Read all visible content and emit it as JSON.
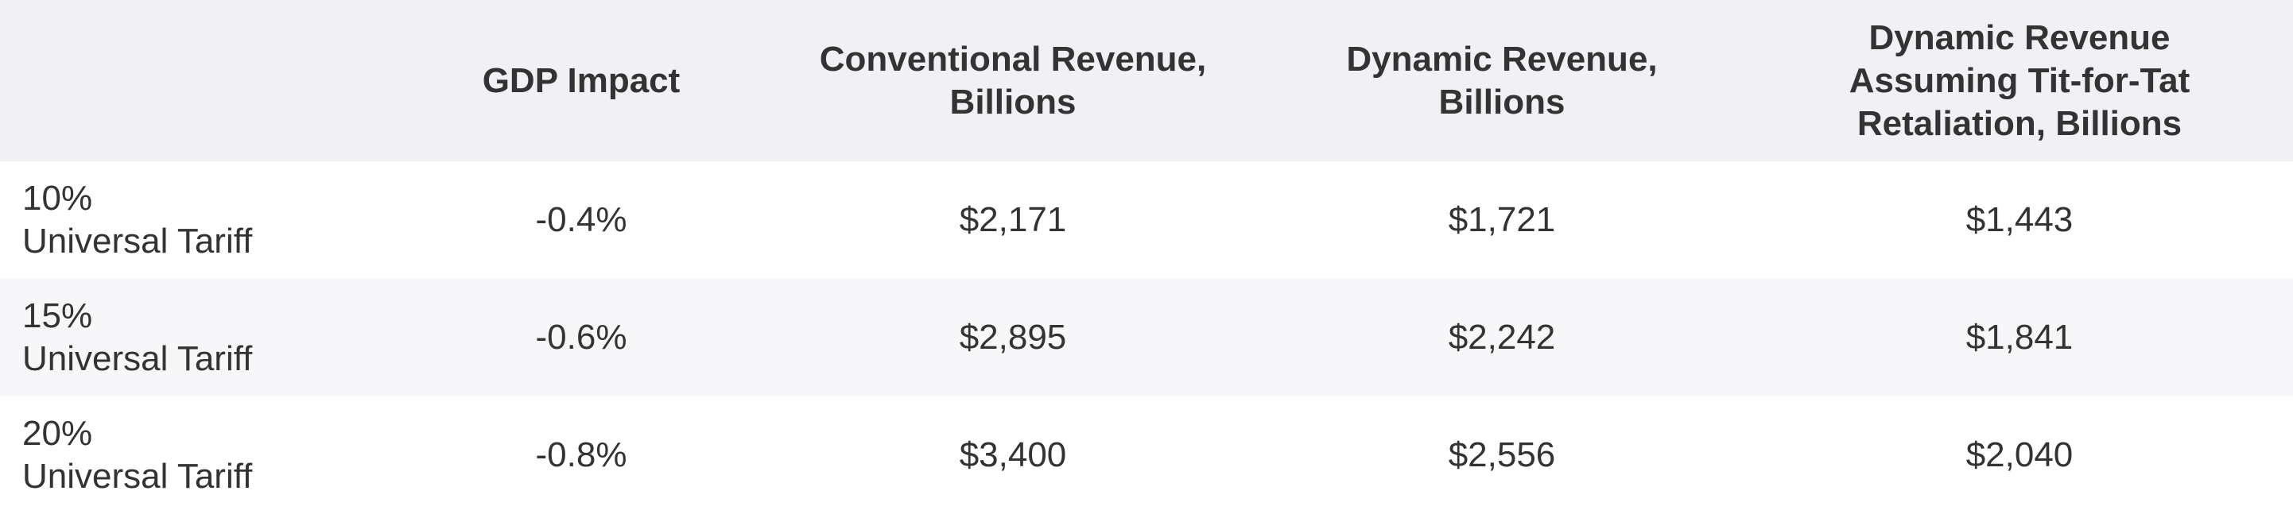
{
  "table": {
    "header": {
      "label": "",
      "gdp_impact": [
        "GDP Impact"
      ],
      "conventional_revenue": [
        "Conventional Revenue,",
        "Billions"
      ],
      "dynamic_revenue": [
        "Dynamic Revenue,",
        "Billions"
      ],
      "dynamic_revenue_retaliation": [
        "Dynamic Revenue",
        "Assuming Tit-for-Tat",
        "Retaliation, Billions"
      ]
    },
    "rows": [
      {
        "label": [
          "10%",
          "Universal Tariff"
        ],
        "gdp_impact": "-0.4%",
        "conventional_revenue": "$2,171",
        "dynamic_revenue": "$1,721",
        "dynamic_revenue_retaliation": "$1,443"
      },
      {
        "label": [
          "15%",
          "Universal Tariff"
        ],
        "gdp_impact": "-0.6%",
        "conventional_revenue": "$2,895",
        "dynamic_revenue": "$2,242",
        "dynamic_revenue_retaliation": "$1,841"
      },
      {
        "label": [
          "20%",
          "Universal Tariff"
        ],
        "gdp_impact": "-0.8%",
        "conventional_revenue": "$3,400",
        "dynamic_revenue": "$2,556",
        "dynamic_revenue_retaliation": "$2,040"
      }
    ]
  },
  "colors": {
    "header_bg": "#f1f1f5",
    "row_alt_bg": "#f7f7fa",
    "text": "#333333"
  }
}
